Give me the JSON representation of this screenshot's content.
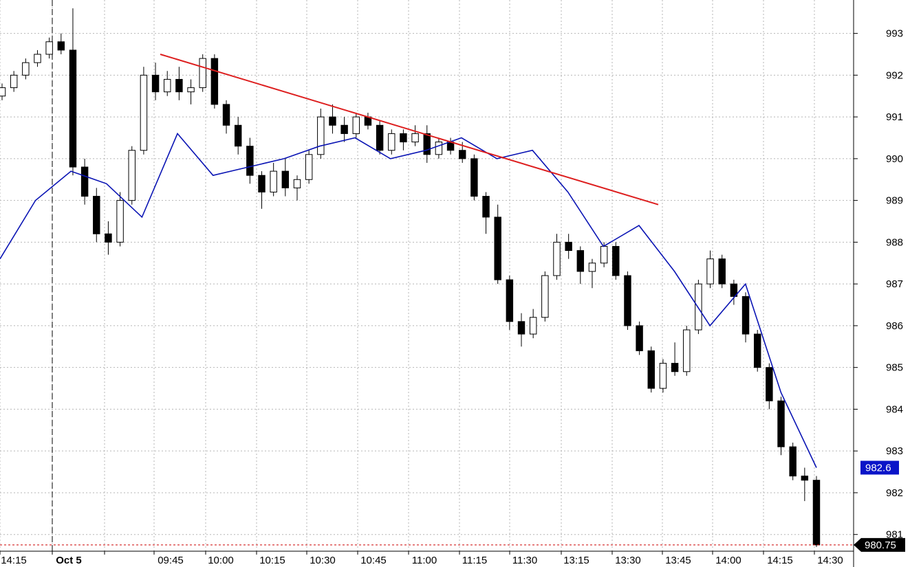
{
  "chart_data": {
    "type": "candlestick",
    "ylim": [
      980.6,
      993.8
    ],
    "y_ticks": [
      981,
      982,
      983,
      984,
      985,
      986,
      987,
      988,
      989,
      990,
      991,
      992,
      993
    ],
    "x_tick_labels": [
      "14:15",
      "Oct 5",
      "09:45",
      "10:00",
      "10:15",
      "10:30",
      "10:45",
      "11:00",
      "11:15",
      "11:30",
      "13:15",
      "13:30",
      "13:45",
      "14:00",
      "14:15",
      "14:30"
    ],
    "session_break_label": "Oct 5",
    "grid": true,
    "colors": {
      "up_candle": "#ffffff",
      "down_candle": "#000000",
      "line_series": "#0a14b4",
      "trendline": "#dd1e1e",
      "last_price_line": "#cc0000",
      "blue_tag": "#0a14c8",
      "black_tag": "#000000"
    },
    "last_price": 980.75,
    "last_price_label": "980.75",
    "line_last_value": 982.6,
    "line_last_label": "982.6",
    "trendline": {
      "start": [
        "09:45",
        992.5
      ],
      "end": [
        "13:45",
        988.9
      ]
    },
    "line_series_points": [
      [
        "prev",
        987.6
      ],
      [
        "prev",
        989.0
      ],
      [
        "prev",
        989.7
      ],
      [
        "prev",
        989.4
      ],
      [
        "prev",
        988.6
      ],
      [
        "Oct 5 open",
        990.6
      ],
      [
        "Oct 5",
        989.6
      ],
      [
        "Oct 5",
        989.8
      ],
      [
        "Oct 5",
        990.0
      ],
      [
        "Oct 5",
        990.3
      ],
      [
        "09:45",
        990.5
      ],
      [
        "10:00",
        990.0
      ],
      [
        "10:15",
        990.2
      ],
      [
        "10:30",
        990.5
      ],
      [
        "10:45",
        990.0
      ],
      [
        "11:00",
        990.2
      ],
      [
        "11:15",
        989.2
      ],
      [
        "11:30",
        987.9
      ],
      [
        "13:15",
        988.4
      ],
      [
        "13:30",
        987.3
      ],
      [
        "13:45",
        986.0
      ],
      [
        "14:00",
        987.0
      ],
      [
        "14:15",
        984.4
      ],
      [
        "14:30",
        982.6
      ]
    ],
    "candles_ohlc": [
      [
        991.5,
        991.8,
        991.4,
        991.7
      ],
      [
        991.7,
        992.1,
        991.6,
        992.0
      ],
      [
        992.0,
        992.4,
        991.9,
        992.3
      ],
      [
        992.3,
        992.6,
        992.2,
        992.5
      ],
      [
        992.5,
        992.9,
        992.4,
        992.8
      ],
      [
        992.8,
        993.0,
        992.5,
        992.6
      ],
      [
        992.6,
        993.6,
        989.6,
        989.8
      ],
      [
        989.8,
        990.0,
        988.9,
        989.1
      ],
      [
        989.1,
        989.3,
        988.0,
        988.2
      ],
      [
        988.2,
        988.5,
        987.7,
        988.0
      ],
      [
        988.0,
        989.2,
        987.9,
        989.0
      ],
      [
        989.0,
        990.3,
        988.9,
        990.2
      ],
      [
        990.2,
        992.2,
        990.1,
        992.0
      ],
      [
        992.0,
        992.3,
        991.4,
        991.6
      ],
      [
        991.6,
        992.1,
        991.5,
        991.9
      ],
      [
        991.9,
        992.2,
        991.4,
        991.6
      ],
      [
        991.6,
        991.9,
        991.3,
        991.7
      ],
      [
        991.7,
        992.5,
        991.6,
        992.4
      ],
      [
        992.4,
        992.5,
        991.2,
        991.3
      ],
      [
        991.3,
        991.4,
        990.6,
        990.8
      ],
      [
        990.8,
        991.0,
        990.1,
        990.3
      ],
      [
        990.3,
        990.5,
        989.4,
        989.6
      ],
      [
        989.6,
        989.7,
        988.8,
        989.2
      ],
      [
        989.2,
        989.9,
        989.1,
        989.7
      ],
      [
        989.7,
        990.0,
        989.1,
        989.3
      ],
      [
        989.3,
        989.6,
        989.0,
        989.5
      ],
      [
        989.5,
        990.2,
        989.4,
        990.1
      ],
      [
        990.1,
        991.2,
        990.0,
        991.0
      ],
      [
        991.0,
        991.3,
        990.6,
        990.8
      ],
      [
        990.8,
        991.0,
        990.4,
        990.6
      ],
      [
        990.6,
        991.1,
        990.5,
        991.0
      ],
      [
        991.0,
        991.1,
        990.7,
        990.8
      ],
      [
        990.8,
        990.9,
        990.1,
        990.2
      ],
      [
        990.2,
        990.7,
        990.1,
        990.6
      ],
      [
        990.6,
        990.7,
        990.2,
        990.4
      ],
      [
        990.4,
        990.8,
        990.3,
        990.6
      ],
      [
        990.6,
        990.8,
        989.9,
        990.1
      ],
      [
        990.1,
        990.5,
        990.0,
        990.4
      ],
      [
        990.4,
        990.5,
        990.1,
        990.2
      ],
      [
        990.2,
        990.4,
        989.9,
        990.0
      ],
      [
        990.0,
        990.1,
        989.0,
        989.1
      ],
      [
        989.1,
        989.2,
        988.2,
        988.6
      ],
      [
        988.6,
        988.9,
        987.0,
        987.1
      ],
      [
        987.1,
        987.2,
        985.9,
        986.1
      ],
      [
        986.1,
        986.3,
        985.5,
        985.8
      ],
      [
        985.8,
        986.4,
        985.7,
        986.2
      ],
      [
        986.2,
        987.3,
        986.1,
        987.2
      ],
      [
        987.2,
        988.2,
        987.1,
        988.0
      ],
      [
        988.0,
        988.2,
        987.6,
        987.8
      ],
      [
        987.8,
        987.9,
        987.0,
        987.3
      ],
      [
        987.3,
        987.6,
        986.9,
        987.5
      ],
      [
        987.5,
        988.0,
        987.4,
        987.9
      ],
      [
        987.9,
        988.0,
        987.1,
        987.2
      ],
      [
        987.2,
        987.3,
        985.9,
        986.0
      ],
      [
        986.0,
        986.1,
        985.3,
        985.4
      ],
      [
        985.4,
        985.5,
        984.4,
        984.5
      ],
      [
        984.5,
        985.2,
        984.4,
        985.1
      ],
      [
        985.1,
        985.6,
        984.8,
        984.9
      ],
      [
        984.9,
        986.0,
        984.8,
        985.9
      ],
      [
        985.9,
        987.1,
        985.8,
        987.0
      ],
      [
        987.0,
        987.8,
        986.9,
        987.6
      ],
      [
        987.6,
        987.7,
        986.9,
        987.0
      ],
      [
        987.0,
        987.1,
        986.5,
        986.7
      ],
      [
        986.7,
        986.8,
        985.6,
        985.8
      ],
      [
        985.8,
        985.9,
        984.9,
        985.0
      ],
      [
        985.0,
        985.1,
        984.0,
        984.2
      ],
      [
        984.2,
        984.3,
        982.9,
        983.1
      ],
      [
        983.1,
        983.2,
        982.3,
        982.4
      ],
      [
        982.4,
        982.6,
        981.8,
        982.3
      ],
      [
        982.3,
        982.4,
        980.7,
        980.75
      ]
    ]
  },
  "labels": {
    "y_ticks_text": [
      "981",
      "982",
      "983",
      "984",
      "985",
      "986",
      "987",
      "988",
      "989",
      "990",
      "991",
      "992",
      "993"
    ],
    "x_ticks_text": [
      "14:15",
      "Oct 5",
      "09:45",
      "10:00",
      "10:15",
      "10:30",
      "10:45",
      "11:00",
      "11:15",
      "11:30",
      "13:15",
      "13:30",
      "13:45",
      "14:00",
      "14:15",
      "14:30"
    ],
    "last_price_tag": "980.75",
    "line_value_tag": "982.6"
  }
}
